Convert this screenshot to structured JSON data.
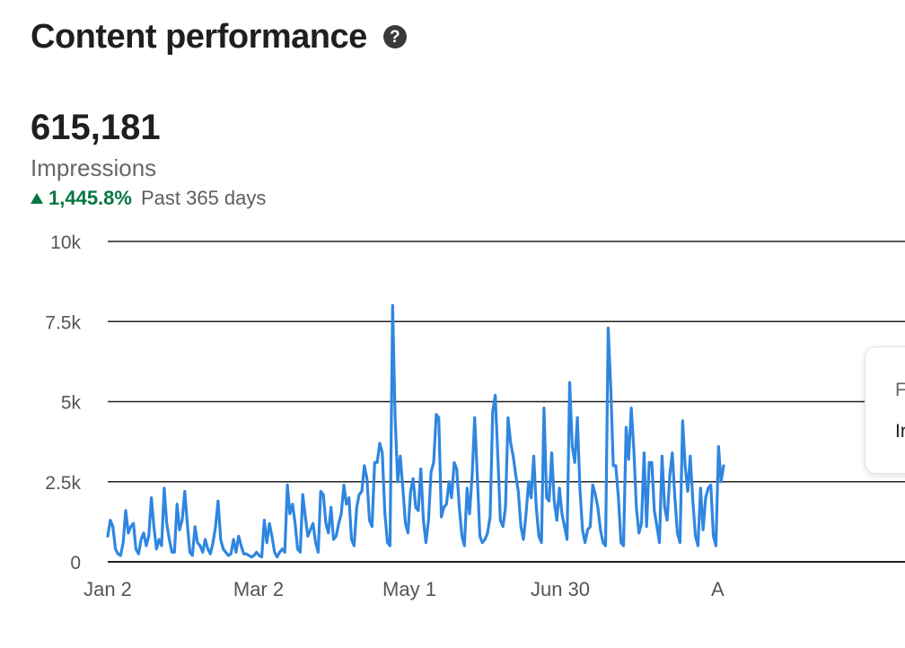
{
  "header": {
    "title": "Content performance",
    "help_icon": "question-circle-icon"
  },
  "metric": {
    "value": "615,181",
    "label": "Impressions",
    "change": "1,445.8%",
    "period": "Past 365 days",
    "change_color": "#057642"
  },
  "tooltip": {
    "line1": "F",
    "line2": "Ir"
  },
  "colors": {
    "line": "#2f86e0",
    "grid": "#222222",
    "axis_text": "#555555"
  },
  "chart_data": {
    "type": "line",
    "ylim": [
      0,
      10000
    ],
    "ytick_labels": [
      "0",
      "2.5k",
      "5k",
      "7.5k",
      "10k"
    ],
    "ytick_values": [
      0,
      2500,
      5000,
      7500,
      10000
    ],
    "x_range_days": [
      0,
      245
    ],
    "xtick_labels": [
      "Jan 2",
      "Mar 2",
      "May 1",
      "Jun 30",
      "A"
    ],
    "xtick_days": [
      0,
      60,
      120,
      180,
      240
    ],
    "grid": true,
    "series": [
      {
        "values": [
          800,
          1300,
          1100,
          400,
          250,
          200,
          600,
          1600,
          900,
          1100,
          1200,
          400,
          250,
          700,
          900,
          500,
          800,
          2000,
          1100,
          400,
          700,
          500,
          2300,
          1200,
          700,
          300,
          300,
          1800,
          1000,
          1300,
          2200,
          1200,
          300,
          200,
          1100,
          600,
          500,
          300,
          700,
          400,
          250,
          600,
          1100,
          1900,
          700,
          400,
          300,
          200,
          250,
          700,
          300,
          800,
          500,
          250,
          250,
          200,
          150,
          200,
          300,
          200,
          150,
          1300,
          600,
          1200,
          800,
          300,
          150,
          300,
          400,
          300,
          2400,
          1500,
          1800,
          1200,
          400,
          300,
          2100,
          1400,
          800,
          1000,
          1200,
          600,
          300,
          2200,
          2100,
          1200,
          900,
          1700,
          700,
          800,
          1200,
          1500,
          2400,
          1800,
          2000,
          700,
          500,
          1700,
          2100,
          2200,
          3000,
          2600,
          1300,
          1100,
          3100,
          3100,
          3700,
          3400,
          1500,
          600,
          500,
          8000,
          4500,
          2500,
          3300,
          2300,
          1200,
          900,
          2200,
          2600,
          1700,
          1600,
          2900,
          1300,
          600,
          1300,
          2800,
          3100,
          4600,
          4500,
          1400,
          1700,
          1800,
          2500,
          2000,
          3100,
          2900,
          1700,
          800,
          500,
          2300,
          1500,
          2700,
          4500,
          2700,
          800,
          600,
          700,
          900,
          1400,
          4700,
          5200,
          3300,
          1300,
          1100,
          1700,
          4500,
          3700,
          3300,
          2700,
          2200,
          1100,
          700,
          1500,
          2500,
          2000,
          3300,
          1700,
          800,
          600,
          4800,
          2000,
          1900,
          3400,
          1900,
          1300,
          2300,
          1500,
          1100,
          700,
          5600,
          3600,
          3100,
          4500,
          2300,
          1000,
          600,
          1000,
          1100,
          2400,
          2100,
          1700,
          1000,
          600,
          500,
          7300,
          5500,
          3000,
          3000,
          2000,
          600,
          500,
          4200,
          3200,
          4800,
          3500,
          1700,
          900,
          1200,
          3400,
          1100,
          3100,
          3100,
          1600,
          1100,
          600,
          3300,
          1700,
          1300,
          2700,
          3400,
          2000,
          900,
          600,
          4400,
          3000,
          2200,
          3300,
          1900,
          800,
          500,
          2300,
          1000,
          2000,
          2300,
          2400,
          800,
          500,
          3600,
          2500,
          3000
        ]
      }
    ]
  }
}
